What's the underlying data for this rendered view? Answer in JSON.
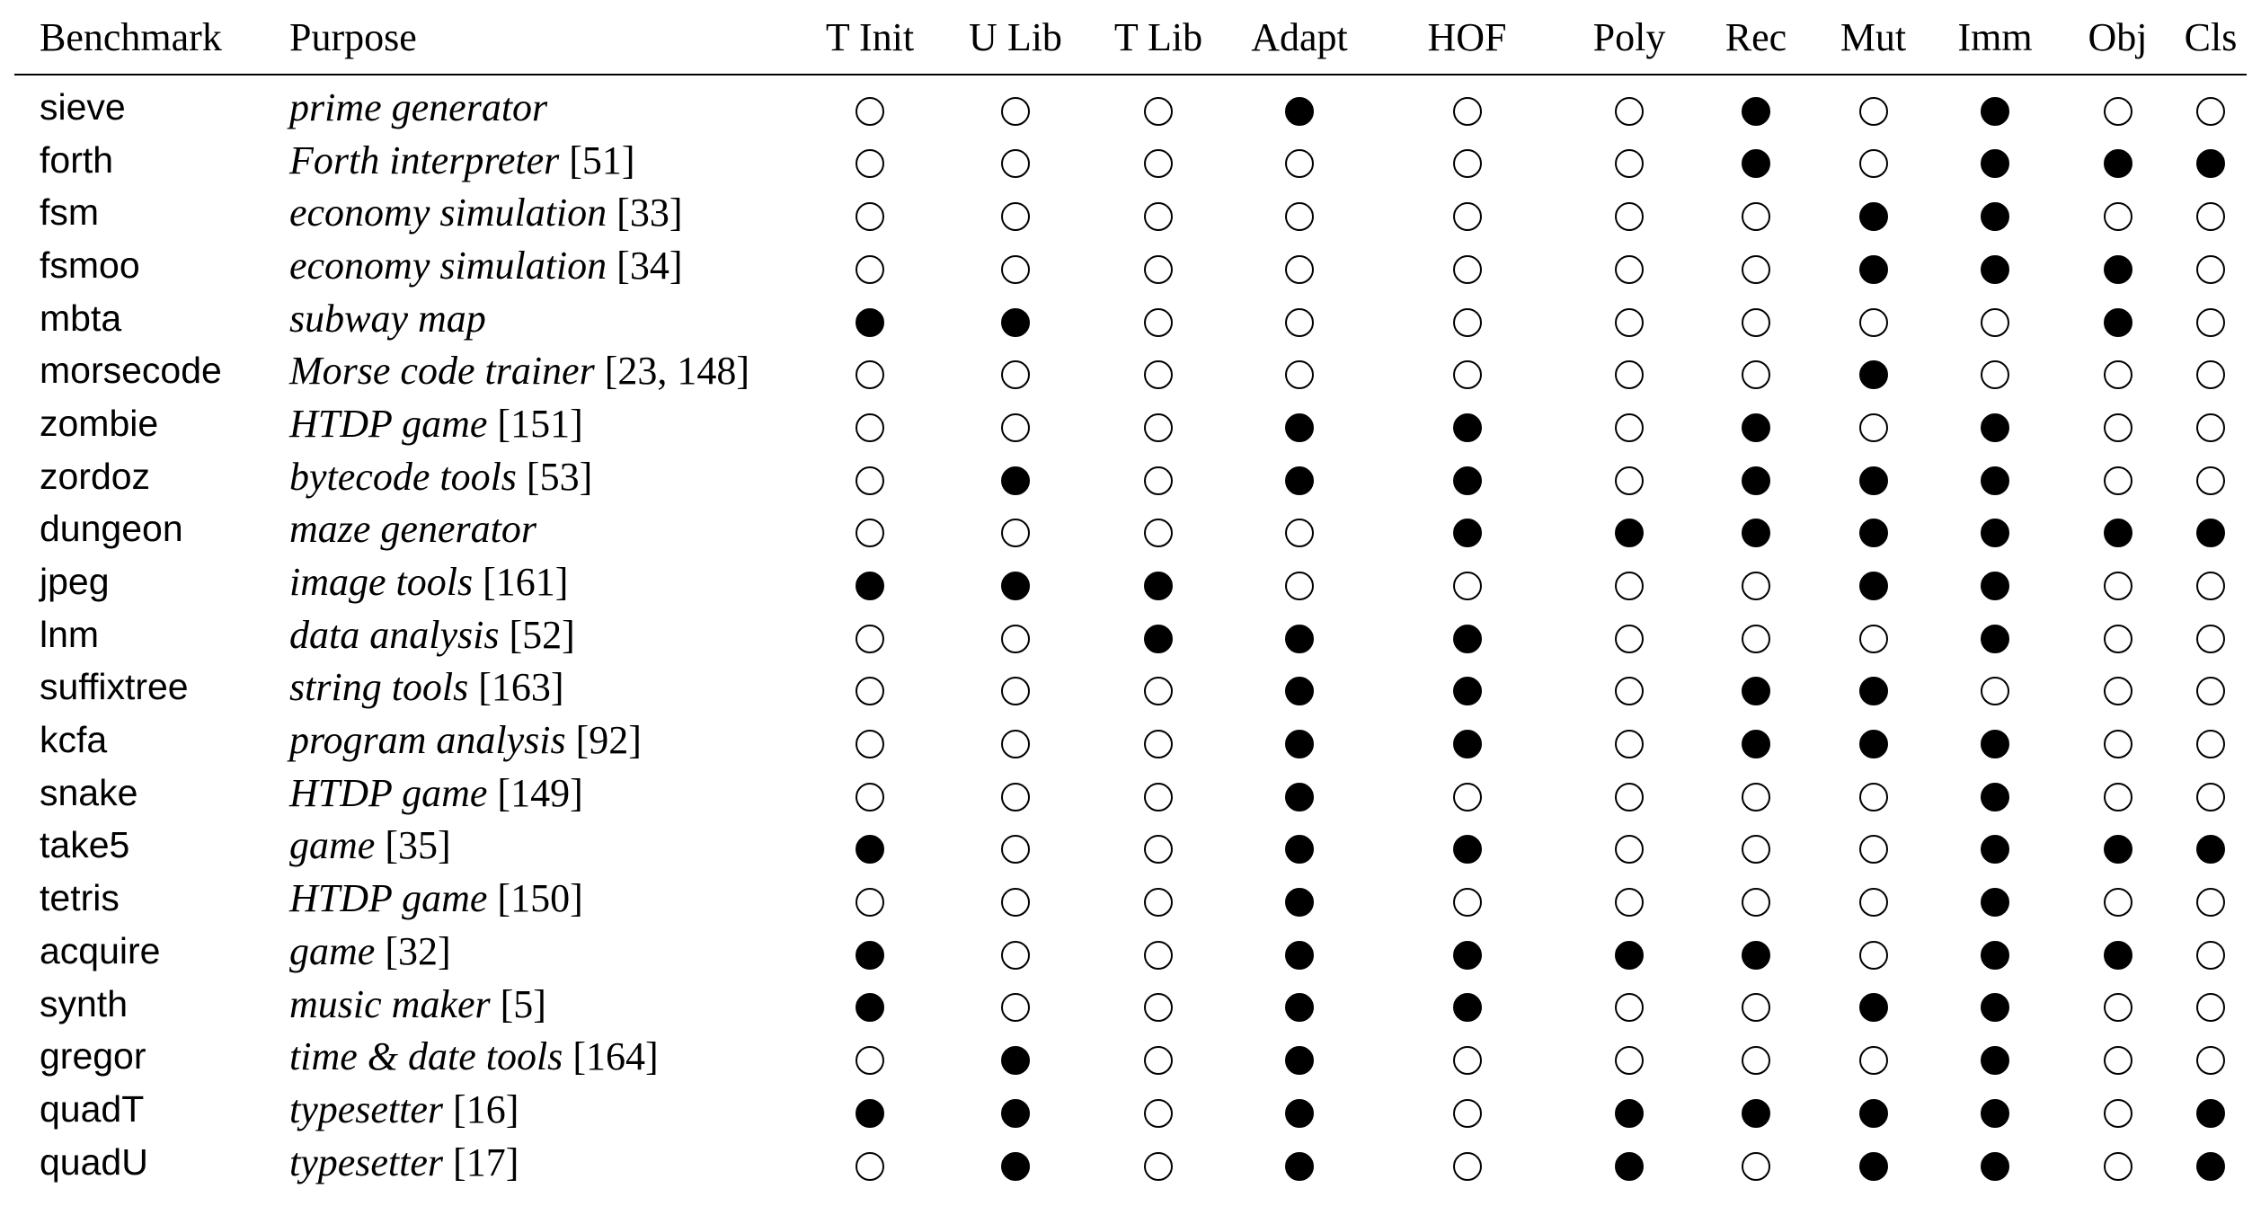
{
  "table": {
    "headers": [
      "Benchmark",
      "Purpose",
      "T Init",
      "U Lib",
      "T Lib",
      "Adapt",
      "HOF",
      "Poly",
      "Rec",
      "Mut",
      "Imm",
      "Obj",
      "Cls"
    ],
    "rows": [
      {
        "name": "sieve",
        "purpose": "prime generator",
        "cite": "",
        "flags": [
          0,
          0,
          0,
          1,
          0,
          0,
          1,
          0,
          1,
          0,
          0
        ]
      },
      {
        "name": "forth",
        "purpose": "Forth interpreter",
        "cite": "[51]",
        "flags": [
          0,
          0,
          0,
          0,
          0,
          0,
          1,
          0,
          1,
          1,
          1
        ]
      },
      {
        "name": "fsm",
        "purpose": "economy simulation",
        "cite": "[33]",
        "flags": [
          0,
          0,
          0,
          0,
          0,
          0,
          0,
          1,
          1,
          0,
          0
        ]
      },
      {
        "name": "fsmoo",
        "purpose": "economy simulation",
        "cite": "[34]",
        "flags": [
          0,
          0,
          0,
          0,
          0,
          0,
          0,
          1,
          1,
          1,
          0
        ]
      },
      {
        "name": "mbta",
        "purpose": "subway map",
        "cite": "",
        "flags": [
          1,
          1,
          0,
          0,
          0,
          0,
          0,
          0,
          0,
          1,
          0
        ]
      },
      {
        "name": "morsecode",
        "purpose": "Morse code trainer",
        "cite": "[23, 148]",
        "flags": [
          0,
          0,
          0,
          0,
          0,
          0,
          0,
          1,
          0,
          0,
          0
        ]
      },
      {
        "name": "zombie",
        "purpose": "HTDP game",
        "cite": "[151]",
        "flags": [
          0,
          0,
          0,
          1,
          1,
          0,
          1,
          0,
          1,
          0,
          0
        ]
      },
      {
        "name": "zordoz",
        "purpose": "bytecode tools",
        "cite": "[53]",
        "flags": [
          0,
          1,
          0,
          1,
          1,
          0,
          1,
          1,
          1,
          0,
          0
        ]
      },
      {
        "name": "dungeon",
        "purpose": "maze generator",
        "cite": "",
        "flags": [
          0,
          0,
          0,
          0,
          1,
          1,
          1,
          1,
          1,
          1,
          1
        ]
      },
      {
        "name": "jpeg",
        "purpose": "image tools",
        "cite": "[161]",
        "flags": [
          1,
          1,
          1,
          0,
          0,
          0,
          0,
          1,
          1,
          0,
          0
        ]
      },
      {
        "name": "lnm",
        "purpose": "data analysis",
        "cite": "[52]",
        "flags": [
          0,
          0,
          1,
          1,
          1,
          0,
          0,
          0,
          1,
          0,
          0
        ]
      },
      {
        "name": "suffixtree",
        "purpose": "string tools",
        "cite": "[163]",
        "flags": [
          0,
          0,
          0,
          1,
          1,
          0,
          1,
          1,
          0,
          0,
          0
        ]
      },
      {
        "name": "kcfa",
        "purpose": "program analysis",
        "cite": "[92]",
        "flags": [
          0,
          0,
          0,
          1,
          1,
          0,
          1,
          1,
          1,
          0,
          0
        ]
      },
      {
        "name": "snake",
        "purpose": "HTDP game",
        "cite": "[149]",
        "flags": [
          0,
          0,
          0,
          1,
          0,
          0,
          0,
          0,
          1,
          0,
          0
        ]
      },
      {
        "name": "take5",
        "purpose": "game",
        "cite": "[35]",
        "flags": [
          1,
          0,
          0,
          1,
          1,
          0,
          0,
          0,
          1,
          1,
          1
        ]
      },
      {
        "name": "tetris",
        "purpose": "HTDP game",
        "cite": "[150]",
        "flags": [
          0,
          0,
          0,
          1,
          0,
          0,
          0,
          0,
          1,
          0,
          0
        ]
      },
      {
        "name": "acquire",
        "purpose": "game",
        "cite": "[32]",
        "flags": [
          1,
          0,
          0,
          1,
          1,
          1,
          1,
          0,
          1,
          1,
          0
        ]
      },
      {
        "name": "synth",
        "purpose": "music maker",
        "cite": "[5]",
        "flags": [
          1,
          0,
          0,
          1,
          1,
          0,
          0,
          1,
          1,
          0,
          0
        ]
      },
      {
        "name": "gregor",
        "purpose": "time & date tools",
        "cite": "[164]",
        "flags": [
          0,
          1,
          0,
          1,
          0,
          0,
          0,
          0,
          1,
          0,
          0
        ]
      },
      {
        "name": "quadT",
        "purpose": "typesetter",
        "cite": "[16]",
        "flags": [
          1,
          1,
          0,
          1,
          0,
          1,
          1,
          1,
          1,
          0,
          1
        ]
      },
      {
        "name": "quadU",
        "purpose": "typesetter",
        "cite": "[17]",
        "flags": [
          0,
          1,
          0,
          1,
          0,
          1,
          0,
          1,
          1,
          0,
          1
        ]
      }
    ]
  }
}
